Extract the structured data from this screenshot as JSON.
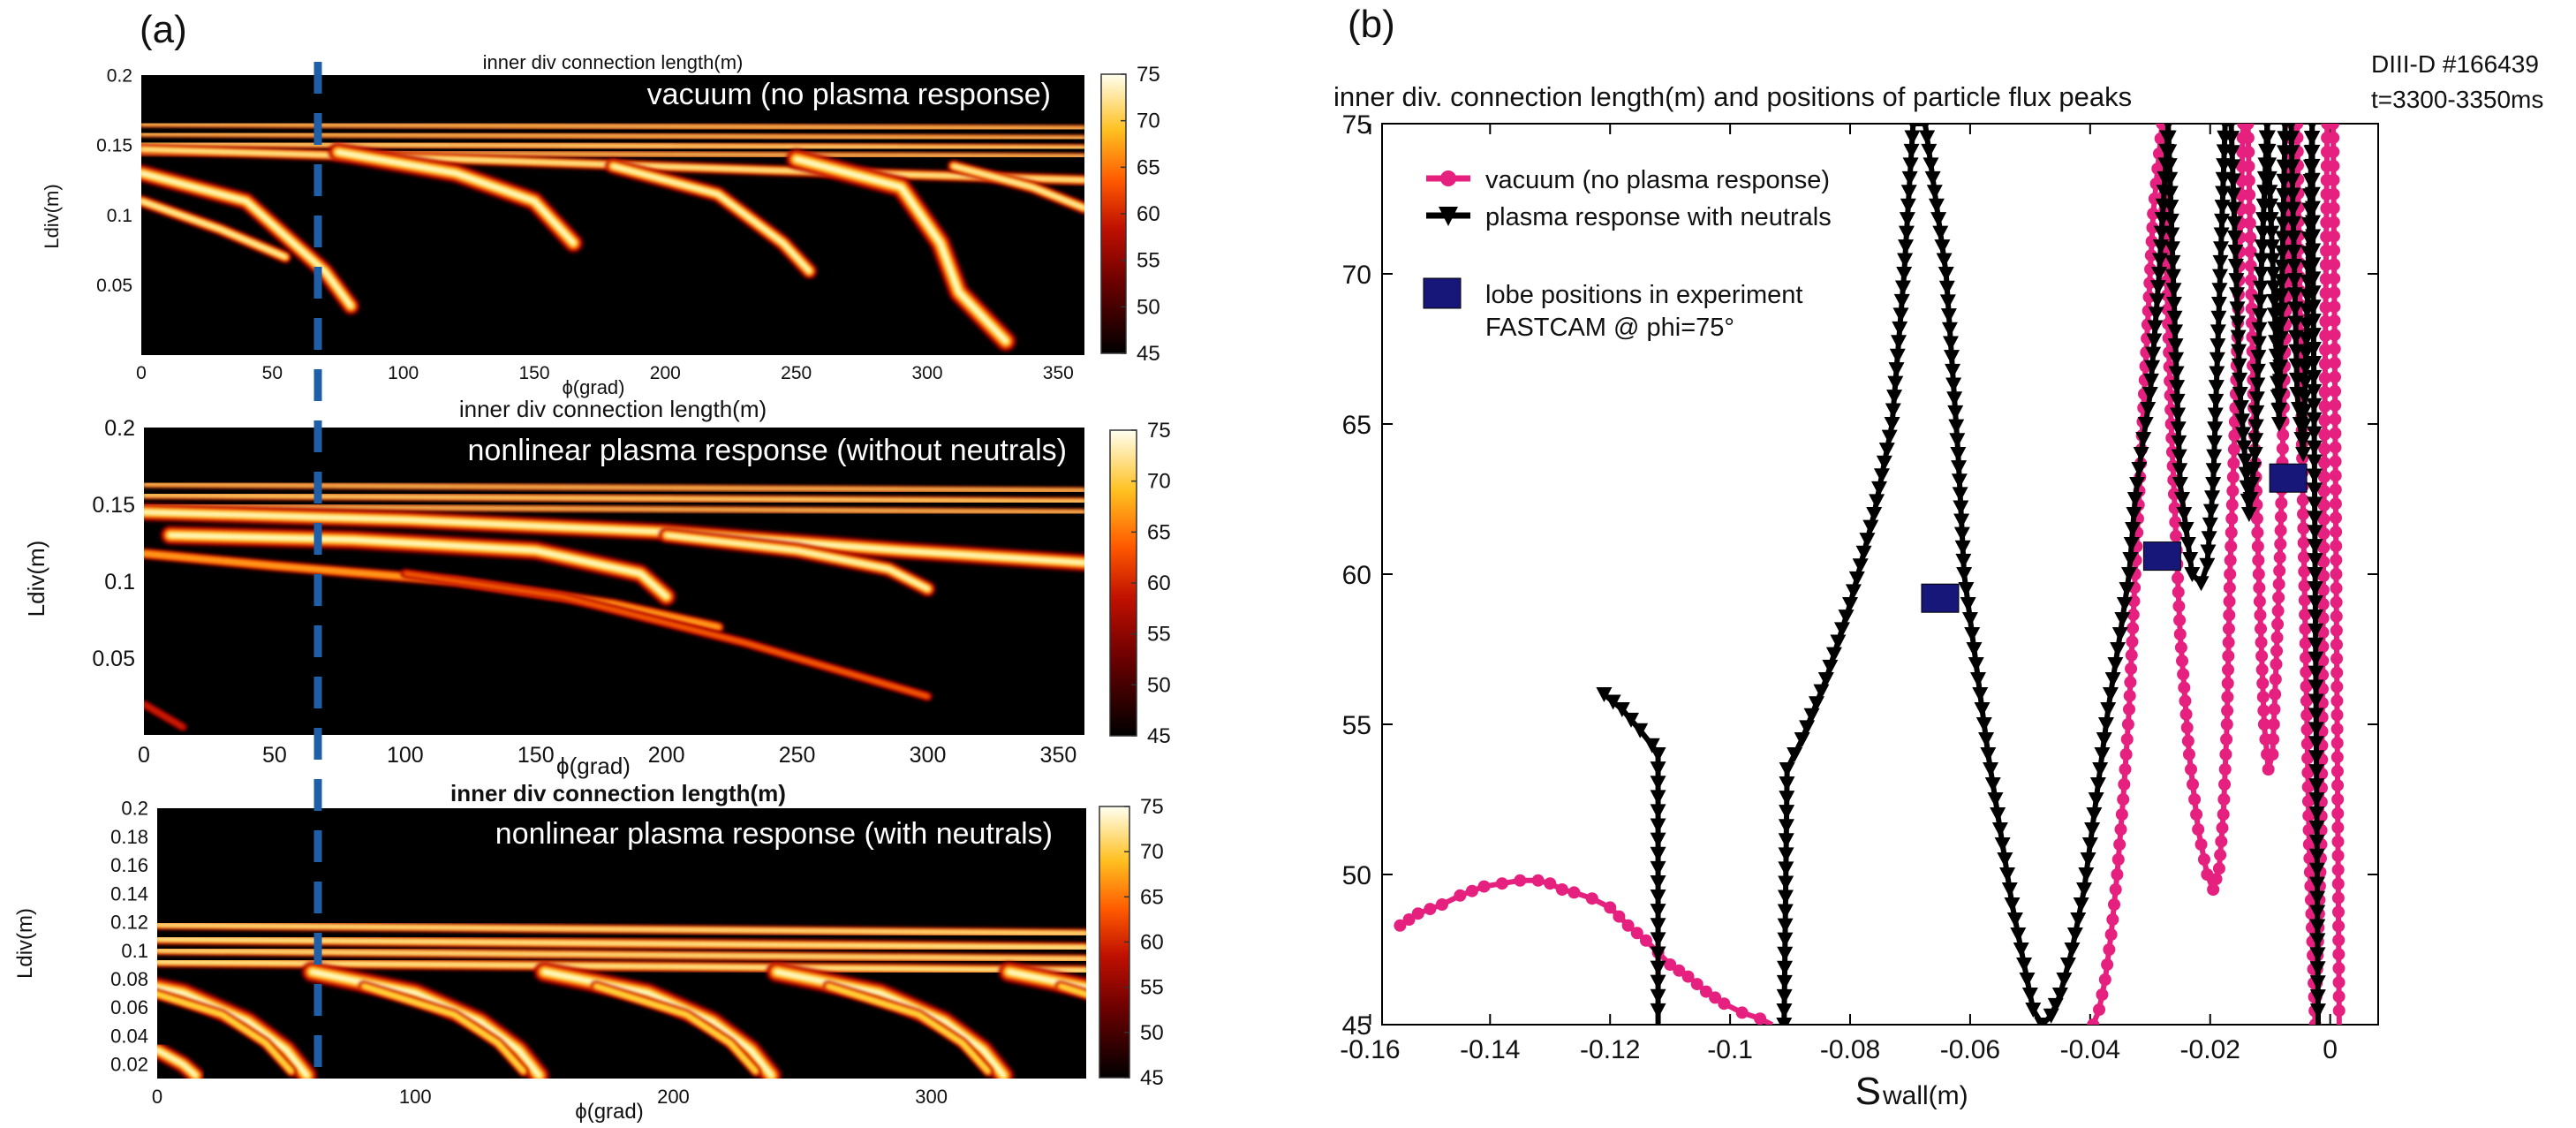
{
  "figure": {
    "panel_a_label": "(a)",
    "panel_b_label": "(b)"
  },
  "colors": {
    "map_black": "#000000",
    "map_red": "#b00000",
    "map_orange": "#ff6a00",
    "map_yellow": "#ffe040",
    "map_white": "#fffff0",
    "dashed_line": "#1f5fa8",
    "vacuum": "#e6207e",
    "neutrals": "#000000",
    "lobe": "#17177a"
  },
  "chart_data": [
    {
      "type": "heatmap",
      "panel": "a1",
      "title": "inner div connection length(m)",
      "annotation": "vacuum (no plasma response)",
      "xlabel": "ϕ(grad)",
      "ylabel": "Ldiv(m)",
      "xlim": [
        0,
        360
      ],
      "ylim": [
        0,
        0.2
      ],
      "xticks": [
        "0",
        "50",
        "100",
        "150",
        "200",
        "250",
        "300",
        "350"
      ],
      "yticks": [
        "0.05",
        "0.1",
        "0.15",
        "0.2"
      ],
      "colorbar": {
        "range": [
          45,
          75
        ],
        "ticks": [
          "45",
          "50",
          "55",
          "60",
          "65",
          "70",
          "75"
        ]
      },
      "marker_phi": 68,
      "no_data_above": 0.167
    },
    {
      "type": "heatmap",
      "panel": "a2",
      "title": "inner div connection length(m)",
      "annotation": "nonlinear plasma response (without neutrals)",
      "xlabel": "ϕ(grad)",
      "ylabel": "Ldiv(m)",
      "xlim": [
        0,
        360
      ],
      "ylim": [
        0,
        0.2
      ],
      "xticks": [
        "0",
        "50",
        "100",
        "150",
        "200",
        "250",
        "300",
        "350"
      ],
      "yticks": [
        "0.05",
        "0.1",
        "0.15",
        "0.2"
      ],
      "colorbar": {
        "range": [
          45,
          75
        ],
        "ticks": [
          "45",
          "50",
          "55",
          "60",
          "65",
          "70",
          "75"
        ]
      },
      "marker_phi": 68,
      "no_data_above": 0.167
    },
    {
      "type": "heatmap",
      "panel": "a3",
      "title": "inner div connection length(m)",
      "annotation": "nonlinear plasma response (with neutrals)",
      "xlabel": "ϕ(grad)",
      "ylabel": "Ldiv(m)",
      "xlim": [
        0,
        360
      ],
      "ylim": [
        0.01,
        0.2
      ],
      "xticks": [
        "0",
        "100",
        "200",
        "300"
      ],
      "yticks": [
        "0.02",
        "0.04",
        "0.06",
        "0.08",
        "0.1",
        "0.12",
        "0.14",
        "0.16",
        "0.18",
        "0.2"
      ],
      "colorbar": {
        "range": [
          45,
          75
        ],
        "ticks": [
          "45",
          "50",
          "55",
          "60",
          "65",
          "70",
          "75"
        ]
      },
      "marker_phi": 62,
      "no_data_above": 0.127
    },
    {
      "type": "line",
      "panel": "b",
      "title": "inner div. connection length(m) and positions of particle flux peaks",
      "corner_label": [
        "DIII-D #166439",
        "t=3300-3350ms"
      ],
      "xlabel": "S",
      "xlabel_sub": "wall(m)",
      "ylabel": "",
      "xlim": [
        -0.158,
        0.008
      ],
      "ylim": [
        45,
        75
      ],
      "xticks": [
        "-0.16",
        "-0.14",
        "-0.12",
        "-0.1",
        "-0.08",
        "-0.06",
        "-0.04",
        "-0.02",
        "0"
      ],
      "yticks": [
        "45",
        "50",
        "55",
        "60",
        "65",
        "70",
        "75"
      ],
      "legend_position": "top-left",
      "series": [
        {
          "name": "vacuum (no plasma response)",
          "marker": "circle",
          "x": [
            -0.155,
            -0.152,
            -0.148,
            -0.145,
            -0.141,
            -0.138,
            -0.135,
            -0.132,
            -0.13,
            -0.128,
            -0.126,
            -0.123,
            -0.12,
            -0.117,
            -0.114,
            -0.11,
            -0.107,
            -0.104,
            -0.101,
            -0.098,
            -0.095,
            -0.093,
            -0.0395,
            -0.0385,
            -0.0375,
            -0.0365,
            -0.0355,
            -0.0345,
            -0.0335,
            -0.0325,
            -0.031,
            -0.0295,
            -0.028,
            -0.0265,
            -0.025,
            -0.0235,
            -0.022,
            -0.0205,
            -0.0195,
            -0.0185,
            -0.0178,
            -0.0172,
            -0.0167,
            -0.0157,
            -0.0145,
            -0.0137,
            -0.0128,
            -0.0119,
            -0.011,
            -0.0103,
            -0.0096,
            -0.009,
            -0.0083,
            -0.0077,
            -0.007,
            -0.0063,
            -0.0055,
            -0.0045,
            -0.0035,
            -0.0025,
            -0.0015,
            -0.0005,
            0.0005,
            0.0015
          ],
          "y": [
            48.3,
            48.7,
            49.0,
            49.3,
            49.6,
            49.7,
            49.8,
            49.8,
            49.7,
            49.5,
            49.4,
            49.2,
            48.9,
            48.3,
            47.8,
            47.0,
            46.6,
            46.1,
            45.7,
            45.4,
            45.2,
            45.0,
            45.0,
            45.5,
            46.5,
            48.0,
            50.0,
            52.5,
            55.5,
            60.0,
            66.0,
            72.0,
            75.0,
            65.0,
            58.0,
            54.0,
            51.5,
            50.0,
            49.5,
            50.2,
            52.0,
            55.0,
            60.0,
            66.0,
            75.0,
            75.0,
            66.0,
            60.0,
            55.0,
            53.5,
            54.0,
            57.0,
            61.0,
            66.0,
            72.0,
            75.0,
            75.0,
            62.0,
            51.0,
            45.0,
            51.0,
            75.0,
            75.0,
            45.0
          ]
        },
        {
          "name": "plasma response with neutrals",
          "marker": "triangle-down",
          "x": [
            -0.121,
            -0.118,
            -0.115,
            -0.113,
            -0.112,
            -0.112,
            -0.091,
            -0.0905,
            -0.088,
            -0.084,
            -0.08,
            -0.076,
            -0.073,
            -0.071,
            -0.0695,
            -0.0675,
            -0.064,
            -0.062,
            -0.061,
            -0.059,
            -0.057,
            -0.055,
            -0.053,
            -0.051,
            -0.0495,
            -0.048,
            -0.0465,
            -0.045,
            -0.043,
            -0.041,
            -0.039,
            -0.037,
            -0.035,
            -0.0335,
            -0.0325,
            -0.0315,
            -0.03,
            -0.0285,
            -0.027,
            -0.025,
            -0.023,
            -0.0215,
            -0.0205,
            -0.0195,
            -0.0175,
            -0.0165,
            -0.015,
            -0.0135,
            -0.0125,
            -0.0115,
            -0.0105,
            -0.0095,
            -0.0085,
            -0.0075,
            -0.0065,
            -0.0055,
            -0.0045,
            -0.003,
            -0.002
          ],
          "y": [
            56.0,
            55.5,
            54.8,
            54.3,
            54.0,
            45.0,
            45.0,
            53.5,
            54.5,
            56.5,
            59.0,
            62.0,
            65.0,
            70.0,
            75.0,
            75.0,
            70.0,
            64.0,
            60.0,
            57.0,
            54.0,
            51.5,
            49.0,
            47.0,
            45.5,
            45.0,
            45.3,
            46.0,
            47.5,
            49.5,
            52.5,
            55.5,
            58.0,
            60.0,
            62.5,
            64.0,
            66.0,
            70.0,
            75.0,
            63.0,
            60.0,
            59.7,
            60.3,
            63.0,
            75.0,
            75.0,
            66.0,
            62.0,
            64.0,
            70.0,
            75.0,
            70.0,
            65.0,
            75.0,
            75.0,
            66.0,
            64.0,
            75.0,
            45.0
          ]
        },
        {
          "name": "lobe positions in experiment FASTCAM @ phi=75°",
          "marker": "square",
          "x": [
            -0.065,
            -0.028,
            -0.007
          ],
          "y": [
            59.2,
            60.6,
            63.2
          ]
        }
      ],
      "legend": [
        "vacuum (no plasma response)",
        "plasma response with neutrals",
        "lobe positions in experiment",
        "FASTCAM @ phi=75°"
      ]
    }
  ]
}
